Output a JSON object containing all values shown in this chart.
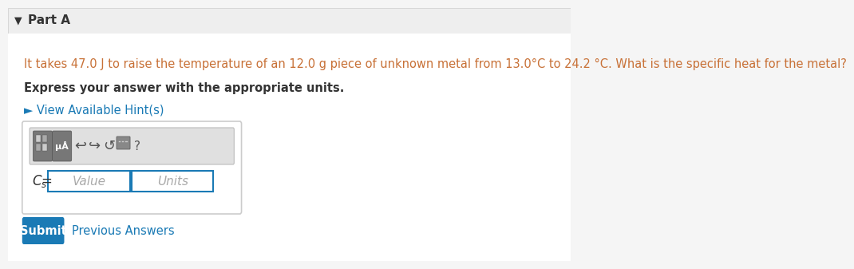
{
  "bg_color": "#f5f5f5",
  "content_bg": "#ffffff",
  "header_text": "Part A",
  "header_color": "#333333",
  "header_bg": "#eeeeee",
  "question_text": "It takes 47.0 J to raise the temperature of an 12.0 g piece of unknown metal from 13.0°C to 24.2 °C. What is the specific heat for the metal?",
  "question_color": "#c87137",
  "instruction_text": "Express your answer with the appropriate units.",
  "instruction_color": "#333333",
  "hint_text": "► View Available Hint(s)",
  "hint_color": "#1a7ab5",
  "label_text": "Cₛ =",
  "value_placeholder": "Value",
  "units_placeholder": "Units",
  "placeholder_color": "#aaaaaa",
  "input_border_color": "#1a7ab5",
  "box_border_color": "#cccccc",
  "submit_bg": "#1a7ab5",
  "submit_text": "Submit",
  "submit_text_color": "#ffffff",
  "prev_answers_text": "Previous Answers",
  "prev_answers_color": "#1a7ab5",
  "toolbar_bg": "#e0e0e0",
  "toolbar_btn_bg": "#888888",
  "toolbar_btn_color": "#ffffff"
}
